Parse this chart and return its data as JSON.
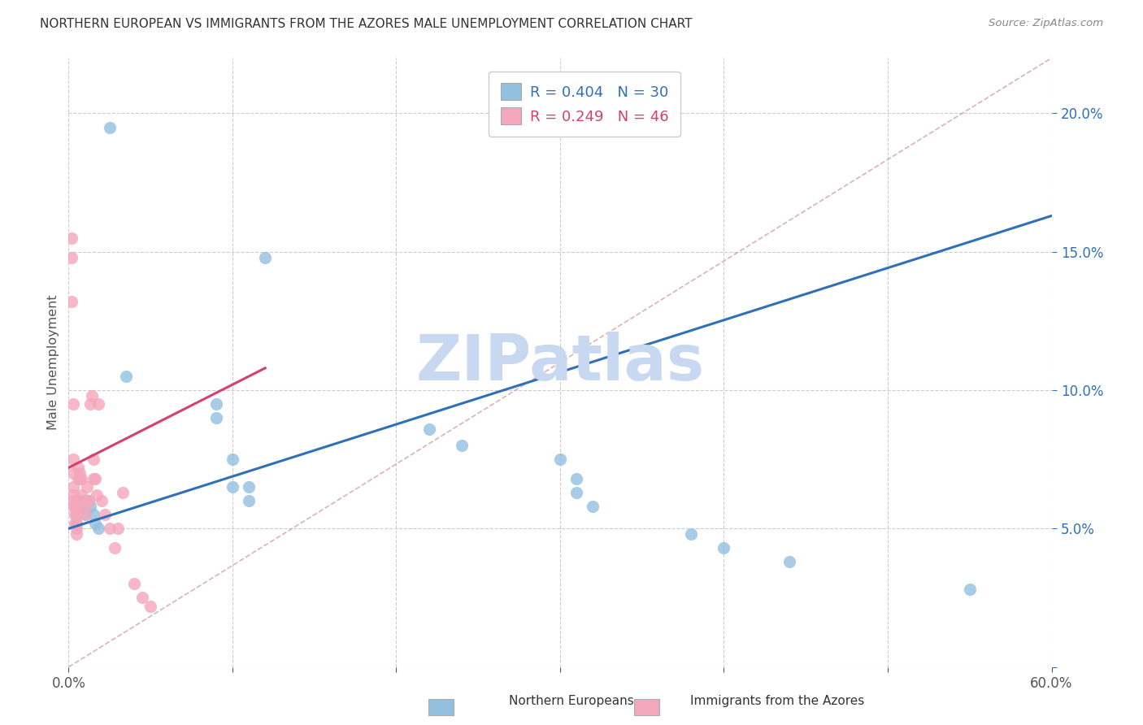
{
  "title": "NORTHERN EUROPEAN VS IMMIGRANTS FROM THE AZORES MALE UNEMPLOYMENT CORRELATION CHART",
  "source": "Source: ZipAtlas.com",
  "ylabel": "Male Unemployment",
  "xlim": [
    0,
    0.6
  ],
  "ylim": [
    0,
    0.22
  ],
  "xtick_positions": [
    0.0,
    0.1,
    0.2,
    0.3,
    0.4,
    0.5,
    0.6
  ],
  "xtick_labels": [
    "0.0%",
    "",
    "",
    "",
    "",
    "",
    "60.0%"
  ],
  "ytick_positions": [
    0.0,
    0.05,
    0.1,
    0.15,
    0.2
  ],
  "ytick_labels": [
    "",
    "5.0%",
    "10.0%",
    "15.0%",
    "20.0%"
  ],
  "blue_R": 0.404,
  "blue_N": 30,
  "pink_R": 0.249,
  "pink_N": 46,
  "blue_color": "#92c0e0",
  "pink_color": "#f4a7bc",
  "blue_line_color": "#3070b8",
  "pink_line_color": "#d44070",
  "diagonal_color": "#d0a0a8",
  "watermark": "ZIPatlas",
  "watermark_color": "#c8d8f0",
  "blue_points_x": [
    0.025,
    0.12,
    0.035,
    0.09,
    0.09,
    0.1,
    0.1,
    0.11,
    0.11,
    0.005,
    0.005,
    0.008,
    0.008,
    0.01,
    0.01,
    0.012,
    0.013,
    0.015,
    0.016,
    0.018,
    0.22,
    0.24,
    0.3,
    0.31,
    0.31,
    0.32,
    0.38,
    0.4,
    0.44,
    0.55
  ],
  "blue_points_y": [
    0.195,
    0.148,
    0.105,
    0.095,
    0.09,
    0.075,
    0.065,
    0.065,
    0.06,
    0.055,
    0.052,
    0.06,
    0.058,
    0.058,
    0.055,
    0.06,
    0.058,
    0.055,
    0.052,
    0.05,
    0.086,
    0.08,
    0.075,
    0.068,
    0.063,
    0.058,
    0.048,
    0.043,
    0.038,
    0.028
  ],
  "pink_points_x": [
    0.002,
    0.002,
    0.002,
    0.003,
    0.003,
    0.003,
    0.003,
    0.003,
    0.003,
    0.003,
    0.004,
    0.004,
    0.004,
    0.005,
    0.005,
    0.005,
    0.005,
    0.005,
    0.005,
    0.006,
    0.006,
    0.007,
    0.007,
    0.008,
    0.008,
    0.01,
    0.01,
    0.01,
    0.011,
    0.012,
    0.013,
    0.014,
    0.015,
    0.015,
    0.016,
    0.017,
    0.018,
    0.02,
    0.022,
    0.025,
    0.028,
    0.03,
    0.033,
    0.04,
    0.045,
    0.05
  ],
  "pink_points_y": [
    0.155,
    0.148,
    0.132,
    0.095,
    0.075,
    0.07,
    0.065,
    0.062,
    0.06,
    0.058,
    0.058,
    0.055,
    0.052,
    0.06,
    0.058,
    0.055,
    0.052,
    0.05,
    0.048,
    0.072,
    0.068,
    0.07,
    0.068,
    0.068,
    0.062,
    0.06,
    0.058,
    0.055,
    0.065,
    0.06,
    0.095,
    0.098,
    0.075,
    0.068,
    0.068,
    0.062,
    0.095,
    0.06,
    0.055,
    0.05,
    0.043,
    0.05,
    0.063,
    0.03,
    0.025,
    0.022
  ]
}
